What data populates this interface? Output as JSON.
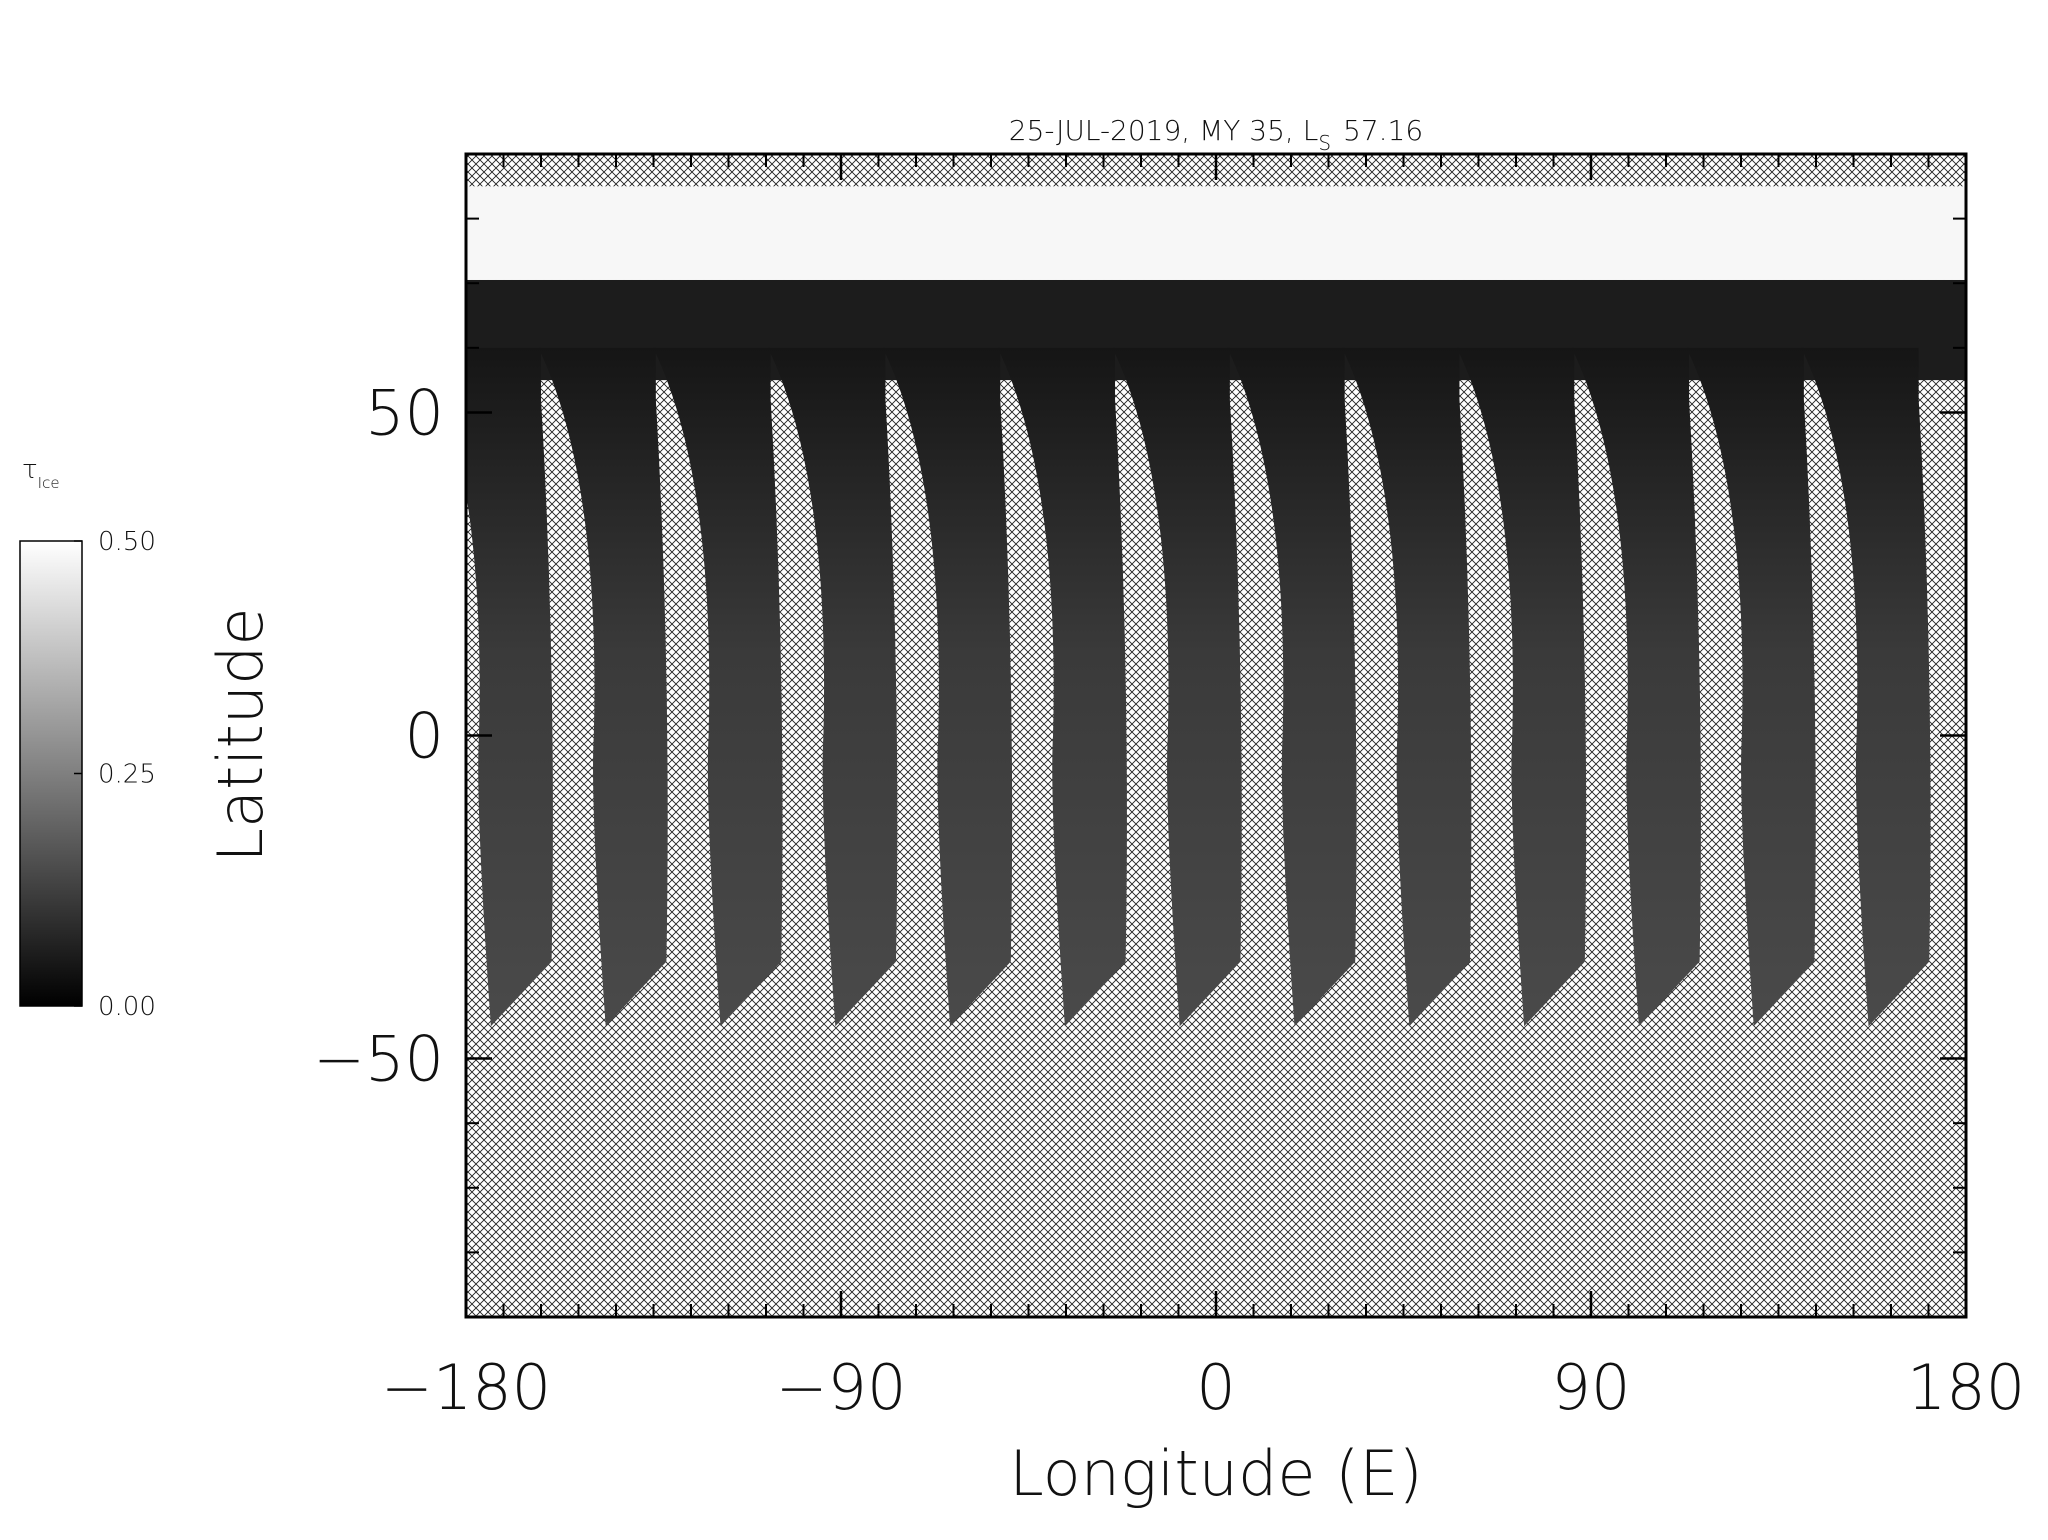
{
  "chart_data": {
    "type": "map",
    "title": "25-JUL-2019, MY 35,  L",
    "title_subscript": "S",
    "title_value": "57.16",
    "xlabel": "Longitude (E)",
    "ylabel": "Latitude",
    "xlim": [
      -180,
      180
    ],
    "xticks": [
      {
        "value": -180,
        "label": "−180"
      },
      {
        "value": -90,
        "label": "−90"
      },
      0,
      90,
      180
    ],
    "ylim": [
      -90,
      90
    ],
    "yticks": [
      {
        "value": -50,
        "label": "−50"
      },
      0,
      50
    ],
    "colorbar": {
      "label": "τ",
      "label_subscript": "Ice",
      "lim": [
        0,
        0.5
      ],
      "ticks": [
        {
          "value": 0,
          "label": "0.00"
        },
        {
          "value": 0.25,
          "label": "0.25"
        },
        {
          "value": 0.5,
          "label": "0.50"
        }
      ],
      "colors": [
        "#000000",
        "#ffffff"
      ]
    }
  }
}
